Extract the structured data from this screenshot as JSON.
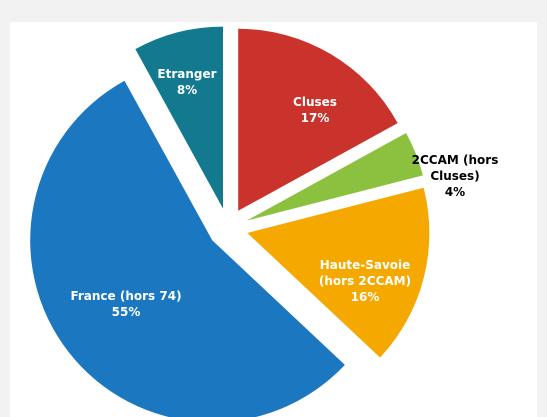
{
  "chart_data": {
    "type": "pie",
    "categories": [
      "Cluses",
      "2CCAM (hors Cluses)",
      "Haute-Savoie (hors 2CCAM)",
      "France (hors 74)",
      "Etranger"
    ],
    "values": [
      17,
      4,
      16,
      55,
      8
    ],
    "value_labels": [
      "17%",
      "4%",
      "16%",
      "55%",
      "8%"
    ],
    "colors": [
      "#c9332b",
      "#8cc13f",
      "#f5a800",
      "#1b77c0",
      "#12798f"
    ]
  }
}
